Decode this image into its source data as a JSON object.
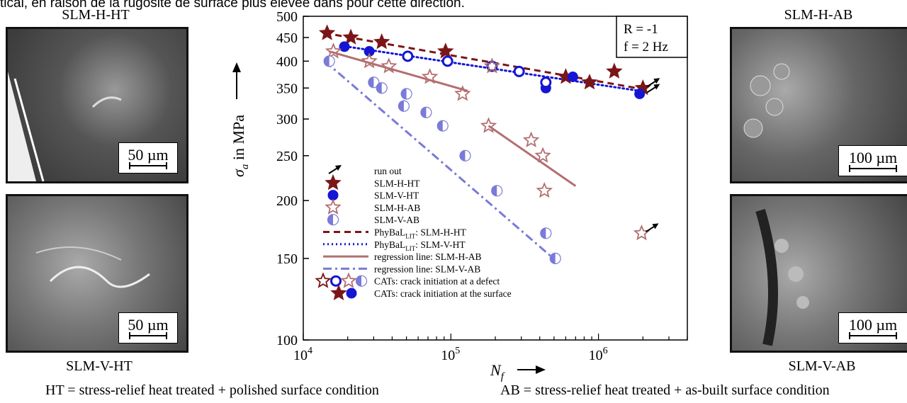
{
  "caption_top": "tical, en raison de la rugosité de surface plus élevée dans pour cette direction.",
  "images": {
    "top_left": {
      "label": "SLM-H-HT",
      "scale": "50 µm"
    },
    "bottom_left": {
      "label": "SLM-V-HT",
      "scale": "50 µm"
    },
    "top_right": {
      "label": "SLM-H-AB",
      "scale": "100 µm"
    },
    "bottom_right": {
      "label": "SLM-V-AB",
      "scale": "100 µm"
    }
  },
  "footnotes": {
    "ht": "HT = stress-relief heat treated + polished surface condition",
    "ab": "AB = stress-relief heat treated + as-built surface condition"
  },
  "chart_data": {
    "type": "scatter",
    "xlabel_sym": "N",
    "xlabel_sub": "f",
    "ylabel_sym": "σ",
    "ylabel_sub": "a",
    "ylabel_text": " in MPa",
    "x_scale": "log",
    "y_scale": "log",
    "xlim": [
      10000,
      4000000
    ],
    "ylim": [
      100,
      500
    ],
    "x_ticks": [
      {
        "value": 10000,
        "base": "10",
        "exp": "4"
      },
      {
        "value": 100000,
        "base": "10",
        "exp": "5"
      },
      {
        "value": 1000000,
        "base": "10",
        "exp": "6"
      }
    ],
    "y_ticks": [
      {
        "value": 100,
        "label": "100"
      },
      {
        "value": 150,
        "label": "150"
      },
      {
        "value": 200,
        "label": "200"
      },
      {
        "value": 250,
        "label": "250"
      },
      {
        "value": 300,
        "label": "300"
      },
      {
        "value": 350,
        "label": "350"
      },
      {
        "value": 400,
        "label": "400"
      },
      {
        "value": 450,
        "label": "450"
      },
      {
        "value": 500,
        "label": "500"
      }
    ],
    "conditions": [
      "R = -1",
      "f = 2 Hz"
    ],
    "colors": {
      "h_ht": "#7a1618",
      "v_ht": "#1515d4",
      "h_ab": "#b36e70",
      "v_ab": "#7a7ad8"
    },
    "series": [
      {
        "name": "SLM-H-HT",
        "marker": "star",
        "fill": "full",
        "color": "#7a1618",
        "points": [
          [
            14500,
            460
          ],
          [
            21000,
            450
          ],
          [
            34000,
            440
          ],
          [
            92000,
            420
          ],
          [
            600000,
            370
          ],
          [
            870000,
            360
          ],
          [
            1280000,
            380
          ],
          [
            2000000,
            350
          ]
        ]
      },
      {
        "name": "SLM-V-HT",
        "marker": "circle",
        "fill": "full",
        "color": "#1515d4",
        "points": [
          [
            19000,
            430
          ],
          [
            28000,
            420
          ],
          [
            440000,
            350
          ],
          [
            670000,
            370
          ],
          [
            1900000,
            340
          ]
        ]
      },
      {
        "name": "SLM-V-HT defect",
        "marker": "circle",
        "fill": "open",
        "color": "#1515d4",
        "points": [
          [
            51000,
            410
          ],
          [
            95000,
            400
          ],
          [
            190000,
            390
          ],
          [
            290000,
            380
          ],
          [
            440000,
            360
          ]
        ]
      },
      {
        "name": "SLM-H-AB",
        "marker": "star",
        "fill": "open",
        "color": "#b36e70",
        "points": [
          [
            16000,
            420
          ],
          [
            28000,
            400
          ],
          [
            38000,
            390
          ],
          [
            72000,
            370
          ],
          [
            120000,
            340
          ],
          [
            180000,
            290
          ],
          [
            350000,
            270
          ],
          [
            420000,
            250
          ],
          [
            430000,
            210
          ],
          [
            1960000,
            170
          ],
          [
            190000,
            390
          ]
        ]
      },
      {
        "name": "SLM-V-AB",
        "marker": "circle",
        "fill": "half",
        "color": "#7a7ad8",
        "points": [
          [
            15000,
            400
          ],
          [
            30000,
            360
          ],
          [
            34000,
            350
          ],
          [
            50000,
            340
          ],
          [
            48000,
            320
          ],
          [
            68000,
            310
          ],
          [
            88000,
            290
          ],
          [
            125000,
            250
          ],
          [
            205000,
            210
          ],
          [
            440000,
            170
          ],
          [
            510000,
            150
          ]
        ]
      }
    ],
    "run_outs": [
      [
        2000000,
        350
      ],
      [
        2000000,
        340
      ],
      [
        1960000,
        170
      ]
    ],
    "lines": [
      {
        "name": "PhyBaL_LIT: SLM-H-HT",
        "style": "dashed",
        "color": "#7a1618",
        "from": [
          14000,
          460
        ],
        "to": [
          2000000,
          348
        ]
      },
      {
        "name": "PhyBaL_LIT: SLM-V-HT",
        "style": "dotted",
        "color": "#1515d4",
        "from": [
          18000,
          432
        ],
        "to": [
          1900000,
          345
        ]
      },
      {
        "name": "regression line: SLM-H-AB",
        "style": "solid",
        "color": "#b36e70",
        "from": [
          15000,
          420
        ],
        "to": [
          130000,
          345
        ]
      },
      {
        "name": "regression line: SLM-H-AB (2)",
        "style": "solid",
        "color": "#b36e70",
        "from": [
          180000,
          290
        ],
        "to": [
          700000,
          215
        ]
      },
      {
        "name": "regression line: SLM-V-AB",
        "style": "dashdot",
        "color": "#7a7ad8",
        "from": [
          14000,
          400
        ],
        "to": [
          520000,
          148
        ]
      }
    ],
    "legend": [
      {
        "label": "run out",
        "key": "runout"
      },
      {
        "label": "SLM-H-HT",
        "key": "star-full-h_ht"
      },
      {
        "label": "SLM-V-HT",
        "key": "circle-full-v_ht"
      },
      {
        "label": "SLM-H-AB",
        "key": "star-open-h_ab"
      },
      {
        "label": "SLM-V-AB",
        "key": "circle-half-v_ab"
      },
      {
        "label": "PhyBaL",
        "sub": "LIT",
        "tail": ": SLM-H-HT",
        "key": "line-dashed-h_ht"
      },
      {
        "label": "PhyBaL",
        "sub": "LIT",
        "tail": ": SLM-V-HT",
        "key": "line-dotted-v_ht"
      },
      {
        "label": "regression line: SLM-H-AB",
        "key": "line-solid-h_ab"
      },
      {
        "label": "regression line: SLM-V-AB",
        "key": "line-dashdot-v_ab"
      },
      {
        "label": "CATs: crack initiation at a defect",
        "key": "cats-defect"
      },
      {
        "label": "CATs: crack initiation at the surface",
        "key": "cats-surface"
      }
    ]
  }
}
